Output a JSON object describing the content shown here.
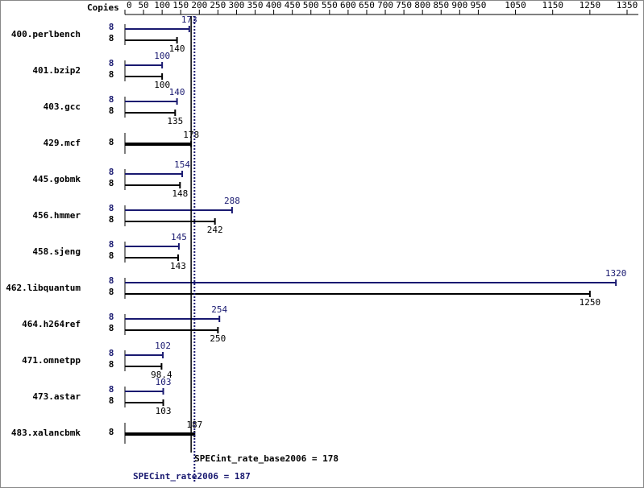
{
  "chart_data": {
    "type": "bar",
    "orientation": "horizontal",
    "copies_header": "Copies",
    "categories": [
      "400.perlbench",
      "401.bzip2",
      "403.gcc",
      "429.mcf",
      "445.gobmk",
      "456.hmmer",
      "458.sjeng",
      "462.libquantum",
      "464.h264ref",
      "471.omnetpp",
      "473.astar",
      "483.xalancbmk"
    ],
    "series": [
      {
        "color": "#191970",
        "values": [
          173,
          100,
          140,
          null,
          154,
          288,
          145,
          1320,
          254,
          102,
          103,
          null
        ],
        "copies": [
          8,
          8,
          8,
          null,
          8,
          8,
          8,
          8,
          8,
          8,
          8,
          null
        ]
      },
      {
        "color": "#000000",
        "values": [
          140,
          100,
          135,
          178,
          148,
          242,
          143,
          1250,
          250,
          98.4,
          103,
          187
        ],
        "copies": [
          8,
          8,
          8,
          8,
          8,
          8,
          8,
          8,
          8,
          8,
          8,
          8
        ]
      }
    ],
    "xlim": [
      0,
      1350
    ],
    "xticks": [
      0,
      50,
      100,
      150,
      200,
      250,
      300,
      350,
      400,
      450,
      500,
      550,
      600,
      650,
      700,
      750,
      800,
      850,
      900,
      950,
      1050,
      1150,
      1250,
      1350
    ],
    "base_reference": {
      "value": 178,
      "label": "SPECint_rate_base2006 = 178",
      "color": "#000000"
    },
    "peak_reference": {
      "value": 187,
      "label": "SPECint_rate2006 = 187",
      "color": "#191970"
    }
  }
}
